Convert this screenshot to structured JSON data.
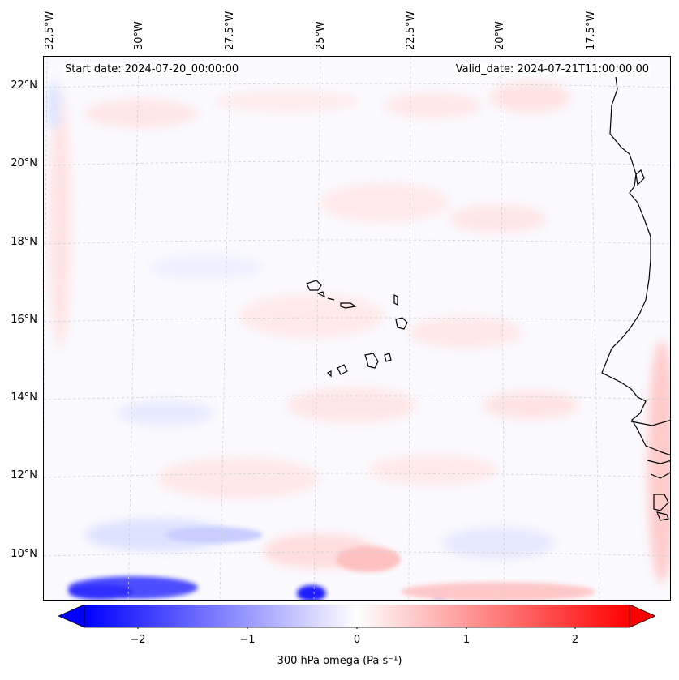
{
  "map": {
    "start_date": "Start date: 2024-07-20_00:00:00",
    "valid_date": "Valid_date: 2024-07-21T11:00:00.00",
    "lon_labels": [
      "32.5°W",
      "30°W",
      "27.5°W",
      "25°W",
      "22.5°W",
      "20°W",
      "17.5°W"
    ],
    "lat_labels": [
      "22°N",
      "20°N",
      "18°N",
      "16°N",
      "14°N",
      "12°N",
      "10°N"
    ],
    "field": "300 hPa omega",
    "features": [
      "Cape Verde islands",
      "West African coastline",
      "Senegal coast",
      "Guinea-Bissau coast"
    ]
  },
  "colorbar": {
    "label": "300 hPa omega (Pa s⁻¹)",
    "ticks": [
      "−2",
      "−1",
      "0",
      "1",
      "2"
    ],
    "min": -2.6,
    "max": 2.6,
    "low_color": "#0000ff",
    "mid_color": "#ffffff",
    "high_color": "#ff0000"
  }
}
